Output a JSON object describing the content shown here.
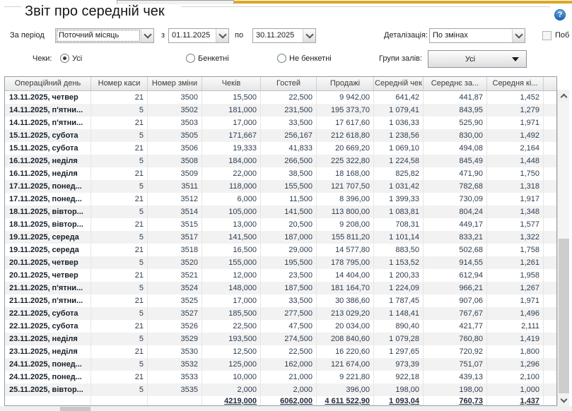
{
  "window": {
    "title": "Звіт про середній чек",
    "help_label": "?"
  },
  "theme": {
    "accent_yellow": "#dca723"
  },
  "filters": {
    "period_label": "За період",
    "period_value": "Поточний місяць",
    "from_label": "з",
    "from_value": "01.11.2025",
    "to_label": "по",
    "to_value": "30.11.2025",
    "detail_label": "Деталізація:",
    "detail_value": "По змінах",
    "build_checkbox_label": "Поб",
    "checks_label": "Чеки:",
    "check_options": [
      {
        "label": "Усі",
        "selected": true
      },
      {
        "label": "Бенкетні",
        "selected": false
      },
      {
        "label": "Не бенкетні",
        "selected": false
      }
    ],
    "hall_groups_label": "Групи залів:",
    "hall_groups_value": "Усі"
  },
  "table": {
    "columns": [
      "Операційний день",
      "Номер каси",
      "Номер зміни",
      "Чеків",
      "Гостей",
      "Продажі",
      "Середній чек",
      "Середнє за...",
      "Середня кі..."
    ],
    "rows": [
      [
        "13.11.2025, четвер",
        "21",
        "3500",
        "15,500",
        "22,500",
        "9 942,00",
        "641,42",
        "441,87",
        "1,452"
      ],
      [
        "14.11.2025, п'ятни...",
        "5",
        "3502",
        "181,000",
        "231,500",
        "195 373,70",
        "1 079,41",
        "843,95",
        "1,279"
      ],
      [
        "14.11.2025, п'ятни...",
        "21",
        "3503",
        "17,000",
        "33,500",
        "17 617,60",
        "1 036,33",
        "525,90",
        "1,971"
      ],
      [
        "15.11.2025, субота",
        "5",
        "3505",
        "171,667",
        "256,167",
        "212 618,80",
        "1 238,56",
        "830,00",
        "1,492"
      ],
      [
        "15.11.2025, субота",
        "21",
        "3506",
        "19,333",
        "41,833",
        "20 669,20",
        "1 069,10",
        "494,08",
        "2,164"
      ],
      [
        "16.11.2025, неділя",
        "5",
        "3508",
        "184,000",
        "266,500",
        "225 322,80",
        "1 224,58",
        "845,49",
        "1,448"
      ],
      [
        "16.11.2025, неділя",
        "21",
        "3509",
        "22,000",
        "38,500",
        "18 168,00",
        "825,82",
        "471,90",
        "1,750"
      ],
      [
        "17.11.2025, понед...",
        "5",
        "3511",
        "118,000",
        "155,500",
        "121 707,50",
        "1 031,42",
        "782,68",
        "1,318"
      ],
      [
        "17.11.2025, понед...",
        "21",
        "3512",
        "6,000",
        "11,500",
        "8 396,00",
        "1 399,33",
        "730,09",
        "1,917"
      ],
      [
        "18.11.2025, вівтор...",
        "5",
        "3514",
        "105,000",
        "141,500",
        "113 800,00",
        "1 083,81",
        "804,24",
        "1,348"
      ],
      [
        "18.11.2025, вівтор...",
        "21",
        "3515",
        "13,000",
        "20,500",
        "9 208,00",
        "708,31",
        "449,17",
        "1,577"
      ],
      [
        "19.11.2025, середа",
        "5",
        "3517",
        "141,500",
        "187,000",
        "155 811,20",
        "1 101,14",
        "833,21",
        "1,322"
      ],
      [
        "19.11.2025, середа",
        "21",
        "3518",
        "16,500",
        "29,000",
        "14 577,80",
        "883,50",
        "502,68",
        "1,758"
      ],
      [
        "20.11.2025, четвер",
        "5",
        "3520",
        "155,000",
        "195,500",
        "178 795,00",
        "1 153,52",
        "914,55",
        "1,261"
      ],
      [
        "20.11.2025, четвер",
        "21",
        "3521",
        "12,000",
        "23,500",
        "14 404,00",
        "1 200,33",
        "612,94",
        "1,958"
      ],
      [
        "21.11.2025, п'ятни...",
        "5",
        "3524",
        "148,000",
        "187,500",
        "181 164,70",
        "1 224,09",
        "966,21",
        "1,267"
      ],
      [
        "21.11.2025, п'ятни...",
        "21",
        "3525",
        "17,000",
        "33,500",
        "30 386,60",
        "1 787,45",
        "907,06",
        "1,971"
      ],
      [
        "22.11.2025, субота",
        "5",
        "3527",
        "185,500",
        "277,500",
        "213 029,20",
        "1 148,41",
        "767,67",
        "1,496"
      ],
      [
        "22.11.2025, субота",
        "21",
        "3526",
        "22,500",
        "47,500",
        "20 034,00",
        "890,40",
        "421,77",
        "2,111"
      ],
      [
        "23.11.2025, неділя",
        "5",
        "3529",
        "193,500",
        "274,500",
        "208 840,60",
        "1 079,28",
        "760,80",
        "1,419"
      ],
      [
        "23.11.2025, неділя",
        "21",
        "3530",
        "12,500",
        "22,500",
        "16 220,60",
        "1 297,65",
        "720,92",
        "1,800"
      ],
      [
        "24.11.2025, понед...",
        "5",
        "3532",
        "125,000",
        "162,000",
        "121 674,00",
        "973,39",
        "751,07",
        "1,296"
      ],
      [
        "24.11.2025, понед...",
        "21",
        "3533",
        "10,000",
        "21,000",
        "9 221,80",
        "922,18",
        "439,13",
        "2,100"
      ],
      [
        "25.11.2025, вівтор...",
        "5",
        "3535",
        "2,000",
        "2,000",
        "396,00",
        "198,00",
        "198,00",
        "1,000"
      ]
    ],
    "totals": [
      "",
      "",
      "",
      "4219,000",
      "6062,000",
      "4 611 522,90",
      "1 093,04",
      "760,73",
      "1,437"
    ]
  }
}
